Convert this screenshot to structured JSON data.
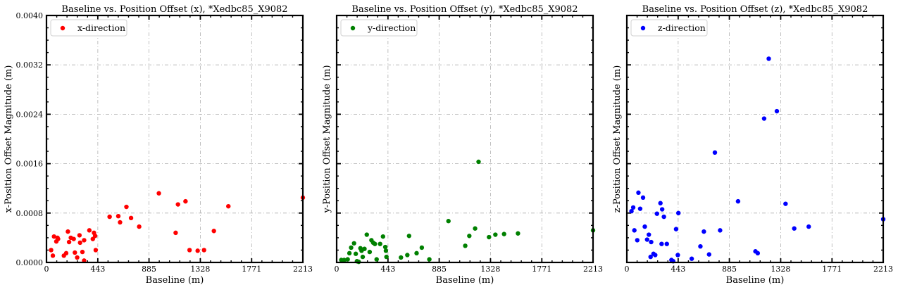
{
  "chart_data": [
    {
      "type": "scatter",
      "title": "Baseline vs. Position Offset (x), *Xedbc85_X9082",
      "xlabel": "Baseline (m)",
      "ylabel": "x-Position Offset Magnitude (m)",
      "xlim": [
        0,
        2213
      ],
      "ylim": [
        0,
        0.004
      ],
      "xticks": [
        "0",
        "443",
        "885",
        "1328",
        "1771",
        "2213"
      ],
      "yticks": [
        "0.0000",
        "0.0008",
        "0.0016",
        "0.0024",
        "0.0032",
        "0.0040"
      ],
      "show_ytick_labels": true,
      "grid": true,
      "legend": "top-left",
      "series": [
        {
          "name": "x-direction",
          "color": "#ff0000",
          "points": [
            [
              40,
              0.0002
            ],
            [
              55,
              0.00011
            ],
            [
              65,
              0.00042
            ],
            [
              85,
              0.00034
            ],
            [
              95,
              0.0004
            ],
            [
              100,
              0.00038
            ],
            [
              150,
              0.00011
            ],
            [
              170,
              0.00015
            ],
            [
              185,
              0.0005
            ],
            [
              195,
              0.00033
            ],
            [
              210,
              0.0004
            ],
            [
              235,
              0.00038
            ],
            [
              245,
              0.00016
            ],
            [
              265,
              8e-05
            ],
            [
              285,
              0.00044
            ],
            [
              290,
              0.00032
            ],
            [
              310,
              0.00017
            ],
            [
              325,
              0.00036
            ],
            [
              325,
              3e-05
            ],
            [
              370,
              0.00052
            ],
            [
              400,
              0.00038
            ],
            [
              410,
              0.00048
            ],
            [
              420,
              0.00043
            ],
            [
              425,
              0.0002
            ],
            [
              545,
              0.00074
            ],
            [
              620,
              0.00075
            ],
            [
              635,
              0.00065
            ],
            [
              690,
              0.0009
            ],
            [
              730,
              0.00072
            ],
            [
              800,
              0.00058
            ],
            [
              970,
              0.00112
            ],
            [
              1115,
              0.00048
            ],
            [
              1135,
              0.00094
            ],
            [
              1200,
              0.00099
            ],
            [
              1235,
              0.0002
            ],
            [
              1305,
              0.00019
            ],
            [
              1360,
              0.0002
            ],
            [
              1445,
              0.00051
            ],
            [
              1570,
              0.00091
            ],
            [
              2213,
              0.00105
            ]
          ]
        }
      ]
    },
    {
      "type": "scatter",
      "title": "Baseline vs. Position Offset (y), *Xedbc85_X9082",
      "xlabel": "Baseline (m)",
      "ylabel": "y-Position Offset Magnitude (m)",
      "xlim": [
        0,
        2213
      ],
      "ylim": [
        0,
        0.004
      ],
      "xticks": [
        "0",
        "443",
        "885",
        "1328",
        "1771",
        "2213"
      ],
      "yticks": [
        "0.0000",
        "0.0008",
        "0.0016",
        "0.0024",
        "0.0032",
        "0.0040"
      ],
      "show_ytick_labels": false,
      "grid": true,
      "legend": "top-left",
      "series": [
        {
          "name": "y-direction",
          "color": "#008000",
          "points": [
            [
              40,
              4e-05
            ],
            [
              55,
              3e-05
            ],
            [
              65,
              4e-05
            ],
            [
              95,
              5e-05
            ],
            [
              110,
              0.00015
            ],
            [
              125,
              0.00024
            ],
            [
              150,
              0.00031
            ],
            [
              165,
              0.00014
            ],
            [
              175,
              2e-05
            ],
            [
              190,
              1e-05
            ],
            [
              205,
              0.00023
            ],
            [
              215,
              0.00019
            ],
            [
              225,
              9e-05
            ],
            [
              240,
              0.00022
            ],
            [
              260,
              0.00045
            ],
            [
              285,
              0.00017
            ],
            [
              300,
              0.00036
            ],
            [
              315,
              0.00032
            ],
            [
              330,
              0.0003
            ],
            [
              345,
              5e-05
            ],
            [
              375,
              0.0003
            ],
            [
              400,
              0.00042
            ],
            [
              420,
              0.00025
            ],
            [
              425,
              0.00019
            ],
            [
              430,
              9e-05
            ],
            [
              555,
              8e-05
            ],
            [
              610,
              0.00012
            ],
            [
              625,
              0.00043
            ],
            [
              690,
              0.00015
            ],
            [
              735,
              0.00024
            ],
            [
              800,
              5e-05
            ],
            [
              965,
              0.00067
            ],
            [
              1110,
              0.00027
            ],
            [
              1145,
              0.00043
            ],
            [
              1195,
              0.00055
            ],
            [
              1225,
              0.00163
            ],
            [
              1315,
              0.00041
            ],
            [
              1370,
              0.00045
            ],
            [
              1445,
              0.00046
            ],
            [
              1565,
              0.00047
            ],
            [
              2213,
              0.00052
            ]
          ]
        }
      ]
    },
    {
      "type": "scatter",
      "title": "Baseline vs. Position Offset (z), *Xedbc85_X9082",
      "xlabel": "Baseline (m)",
      "ylabel": "z-Position Offset Magnitude (m)",
      "xlim": [
        0,
        2213
      ],
      "ylim": [
        0,
        0.004
      ],
      "xticks": [
        "0",
        "443",
        "885",
        "1328",
        "1771",
        "2213"
      ],
      "yticks": [
        "0.0000",
        "0.0008",
        "0.0016",
        "0.0024",
        "0.0032",
        "0.0040"
      ],
      "show_ytick_labels": false,
      "grid": true,
      "legend": "top-left",
      "series": [
        {
          "name": "z-direction",
          "color": "#0000ff",
          "points": [
            [
              40,
              0.00083
            ],
            [
              55,
              0.00089
            ],
            [
              65,
              0.00052
            ],
            [
              90,
              0.00036
            ],
            [
              100,
              0.00113
            ],
            [
              115,
              0.00087
            ],
            [
              140,
              0.00105
            ],
            [
              155,
              0.00058
            ],
            [
              175,
              0.00037
            ],
            [
              190,
              0.00045
            ],
            [
              205,
              9e-05
            ],
            [
              210,
              0.00033
            ],
            [
              230,
              0.00014
            ],
            [
              245,
              0.00012
            ],
            [
              260,
              0.00079
            ],
            [
              290,
              0.00096
            ],
            [
              300,
              0.0003
            ],
            [
              305,
              0.00086
            ],
            [
              320,
              0.00074
            ],
            [
              345,
              0.0003
            ],
            [
              385,
              4e-05
            ],
            [
              400,
              2e-05
            ],
            [
              425,
              0.00054
            ],
            [
              440,
              0.00012
            ],
            [
              445,
              0.0008
            ],
            [
              560,
              6e-05
            ],
            [
              635,
              0.00026
            ],
            [
              665,
              0.0005
            ],
            [
              710,
              0.00013
            ],
            [
              760,
              0.00178
            ],
            [
              805,
              0.00052
            ],
            [
              960,
              0.00099
            ],
            [
              1110,
              0.00018
            ],
            [
              1130,
              0.00015
            ],
            [
              1185,
              0.00233
            ],
            [
              1225,
              0.0033
            ],
            [
              1295,
              0.00245
            ],
            [
              1370,
              0.00095
            ],
            [
              1445,
              0.00055
            ],
            [
              1570,
              0.00058
            ],
            [
              2213,
              0.0007
            ]
          ]
        }
      ]
    }
  ]
}
